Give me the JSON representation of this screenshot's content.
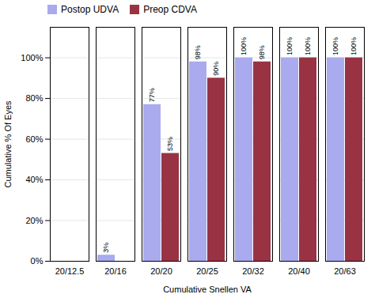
{
  "chart_data": {
    "type": "bar",
    "xlabel": "Cumulative Snellen VA",
    "ylabel": "Cumulative % Of Eyes",
    "categories": [
      "20/12.5",
      "20/16",
      "20/20",
      "20/25",
      "20/32",
      "20/40",
      "20/63"
    ],
    "series": [
      {
        "name": "Postop UDVA",
        "color": "#aaaaee",
        "values": [
          0,
          3,
          77,
          98,
          100,
          100,
          100
        ],
        "value_labels": [
          null,
          "3%",
          "77%",
          "98%",
          "100%",
          "100%",
          "100%"
        ]
      },
      {
        "name": "Preop CDVA",
        "color": "#993344",
        "values": [
          0,
          0,
          53,
          90,
          98,
          100,
          100
        ],
        "value_labels": [
          null,
          null,
          "53%",
          "90%",
          "98%",
          "100%",
          "100%"
        ]
      }
    ],
    "ylim": [
      0,
      115
    ],
    "yticks": [
      {
        "value": 0,
        "label": "0%"
      },
      {
        "value": 20,
        "label": "20%"
      },
      {
        "value": 40,
        "label": "40%"
      },
      {
        "value": 60,
        "label": "60%"
      },
      {
        "value": 80,
        "label": "80%"
      },
      {
        "value": 100,
        "label": "100%"
      }
    ],
    "grid": true,
    "data_labels": true,
    "legend": "upper left"
  }
}
